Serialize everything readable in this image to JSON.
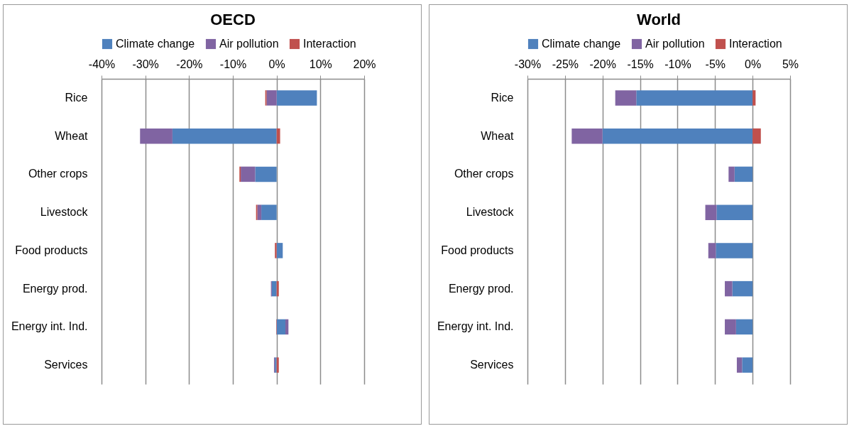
{
  "chart_data": [
    {
      "type": "bar",
      "title": "OECD",
      "orientation": "horizontal",
      "stacked": true,
      "grid": "x",
      "legend": "top",
      "categories": [
        "Rice",
        "Wheat",
        "Other crops",
        "Livestock",
        "Food products",
        "Energy prod.",
        "Energy int. Ind.",
        "Services"
      ],
      "series": [
        {
          "name": "Climate change",
          "color": "#4f81bd",
          "values": [
            9.2,
            -23.8,
            -4.9,
            -3.5,
            1.4,
            -1.1,
            2.0,
            -0.4
          ]
        },
        {
          "name": "Air pollution",
          "color": "#8064a2",
          "values": [
            -2.3,
            -7.4,
            -3.3,
            -0.9,
            0,
            -0.2,
            0.7,
            -0.2
          ]
        },
        {
          "name": "Interaction",
          "color": "#c0504d",
          "values": [
            -0.3,
            0.8,
            -0.3,
            -0.3,
            -0.4,
            0.5,
            -0.1,
            0.5
          ]
        }
      ],
      "xlim": [
        -40,
        20
      ],
      "xticks": [
        {
          "value": -40,
          "label": "-40%"
        },
        {
          "value": -30,
          "label": "-30%"
        },
        {
          "value": -20,
          "label": "-20%"
        },
        {
          "value": -10,
          "label": "-10%"
        },
        {
          "value": 0,
          "label": "0%"
        },
        {
          "value": 10,
          "label": "10%"
        },
        {
          "value": 20,
          "label": "20%"
        }
      ]
    },
    {
      "type": "bar",
      "title": "World",
      "orientation": "horizontal",
      "stacked": true,
      "grid": "x",
      "legend": "top",
      "categories": [
        "Rice",
        "Wheat",
        "Other crops",
        "Livestock",
        "Food products",
        "Energy prod.",
        "Energy int. Ind.",
        "Services"
      ],
      "series": [
        {
          "name": "Climate change",
          "color": "#4f81bd",
          "values": [
            -15.5,
            -20.0,
            -2.4,
            -4.8,
            -4.9,
            -2.7,
            -2.2,
            -1.4
          ]
        },
        {
          "name": "Air pollution",
          "color": "#8064a2",
          "values": [
            -2.8,
            -4.1,
            -0.8,
            -1.5,
            -1.0,
            -1.0,
            -1.5,
            -0.7
          ]
        },
        {
          "name": "Interaction",
          "color": "#c0504d",
          "values": [
            0.4,
            1.1,
            0,
            0,
            0,
            0,
            0,
            0
          ]
        }
      ],
      "xlim": [
        -30,
        5
      ],
      "xticks": [
        {
          "value": -30,
          "label": "-30%"
        },
        {
          "value": -25,
          "label": "-25%"
        },
        {
          "value": -20,
          "label": "-20%"
        },
        {
          "value": -15,
          "label": "-15%"
        },
        {
          "value": -10,
          "label": "-10%"
        },
        {
          "value": -5,
          "label": "-5%"
        },
        {
          "value": 0,
          "label": "0%"
        },
        {
          "value": 5,
          "label": "5%"
        }
      ]
    }
  ]
}
